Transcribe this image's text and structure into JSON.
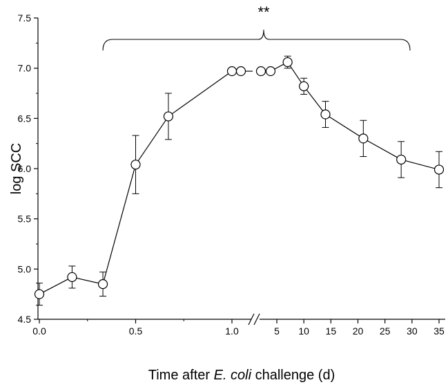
{
  "chart_data": {
    "type": "line",
    "title": "",
    "xlabel_parts": [
      "Time after ",
      "E. coli",
      " challenge (d)"
    ],
    "ylabel": "log SCC",
    "ylim": [
      4.5,
      7.5
    ],
    "yticks": [
      "4.5",
      "5.0",
      "5.5",
      "6.0",
      "6.5",
      "7.0",
      "7.5"
    ],
    "x_axis_break": true,
    "x_segment_1": {
      "range": [
        0.0,
        1.0
      ],
      "ticks": [
        "0.0",
        "0.5",
        "1.0"
      ]
    },
    "x_segment_2": {
      "range": [
        5,
        35
      ],
      "ticks": [
        "5",
        "10",
        "15",
        "20",
        "25",
        "30",
        "35"
      ]
    },
    "significance_label": "**",
    "significance_bracket_range_days": [
      0.33,
      29
    ],
    "grid": false,
    "marker": "open-circle",
    "series": [
      {
        "points": [
          {
            "x": 0.0,
            "y": 4.75,
            "err": 0.11
          },
          {
            "x": 0.17,
            "y": 4.92,
            "err": 0.11
          },
          {
            "x": 0.33,
            "y": 4.85,
            "err": 0.12
          },
          {
            "x": 0.5,
            "y": 6.04,
            "err": 0.29
          },
          {
            "x": 0.67,
            "y": 6.52,
            "err": 0.23
          },
          {
            "x": 1.0,
            "y": 6.97,
            "err": 0.01
          },
          {
            "x": 2,
            "y": 6.97,
            "err": 0.01
          },
          {
            "x": 3,
            "y": 6.97,
            "err": 0.01
          },
          {
            "x": 4,
            "y": 6.97,
            "err": 0.01
          },
          {
            "x": 7,
            "y": 7.06,
            "err": 0.06
          },
          {
            "x": 10,
            "y": 6.82,
            "err": 0.08
          },
          {
            "x": 14,
            "y": 6.54,
            "err": 0.13
          },
          {
            "x": 21,
            "y": 6.3,
            "err": 0.18
          },
          {
            "x": 28,
            "y": 6.09,
            "err": 0.18
          },
          {
            "x": 35,
            "y": 5.99,
            "err": 0.18
          }
        ]
      }
    ]
  }
}
